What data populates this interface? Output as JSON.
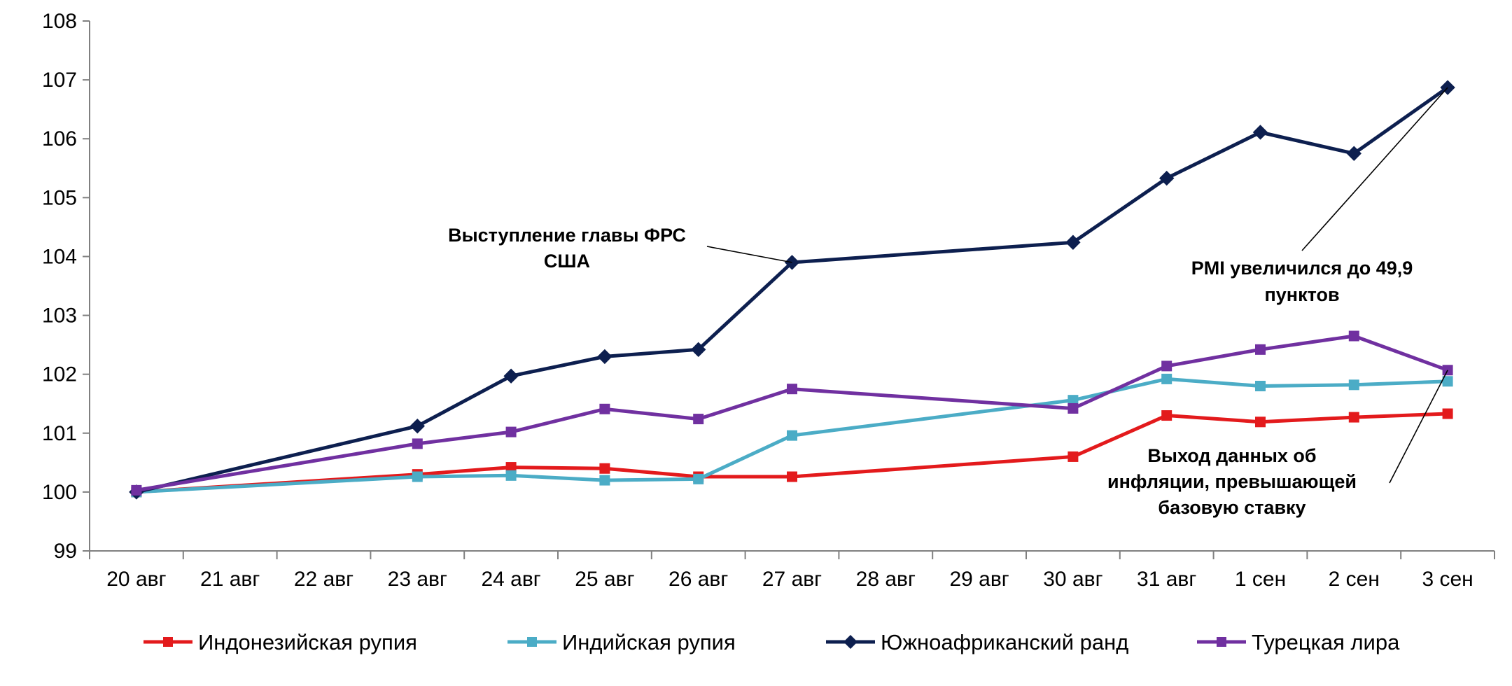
{
  "chart_data": {
    "type": "line",
    "title": "",
    "xlabel": "",
    "ylabel": "",
    "ylim": [
      99,
      108
    ],
    "yticks": [
      99,
      100,
      101,
      102,
      103,
      104,
      105,
      106,
      107,
      108
    ],
    "grid": false,
    "legend_position": "bottom",
    "categories": [
      "20 авг",
      "21 авг",
      "22 авг",
      "23 авг",
      "24 авг",
      "25 авг",
      "26 авг",
      "27 авг",
      "28 авг",
      "29 авг",
      "30 авг",
      "31 авг",
      "1 сен",
      "2 сен",
      "3 сен"
    ],
    "series": [
      {
        "name": "Индонезийская рупия",
        "color": "#e31a1c",
        "marker": "square",
        "points": [
          [
            0,
            100.0
          ],
          [
            3,
            100.3
          ],
          [
            4,
            100.42
          ],
          [
            5,
            100.4
          ],
          [
            6,
            100.26
          ],
          [
            7,
            100.26
          ],
          [
            10,
            100.6
          ],
          [
            11,
            101.3
          ],
          [
            12,
            101.19
          ],
          [
            13,
            101.27
          ],
          [
            14,
            101.33
          ]
        ]
      },
      {
        "name": "Индийская рупия",
        "color": "#4bacc6",
        "marker": "square",
        "points": [
          [
            0,
            100.0
          ],
          [
            3,
            100.26
          ],
          [
            4,
            100.28
          ],
          [
            5,
            100.2
          ],
          [
            6,
            100.22
          ],
          [
            7,
            100.96
          ],
          [
            10,
            101.56
          ],
          [
            11,
            101.92
          ],
          [
            12,
            101.8
          ],
          [
            13,
            101.82
          ],
          [
            14,
            101.88
          ]
        ]
      },
      {
        "name": "Южноафриканский ранд",
        "color": "#0d1f4f",
        "marker": "diamond",
        "points": [
          [
            0,
            100.0
          ],
          [
            3,
            101.12
          ],
          [
            4,
            101.97
          ],
          [
            5,
            102.3
          ],
          [
            6,
            102.42
          ],
          [
            7,
            103.9
          ],
          [
            10,
            104.24
          ],
          [
            11,
            105.33
          ],
          [
            12,
            106.11
          ],
          [
            13,
            105.75
          ],
          [
            14,
            106.87
          ]
        ]
      },
      {
        "name": "Турецкая лира",
        "color": "#7030a0",
        "marker": "square",
        "points": [
          [
            0,
            100.03
          ],
          [
            3,
            100.82
          ],
          [
            4,
            101.02
          ],
          [
            5,
            101.41
          ],
          [
            6,
            101.24
          ],
          [
            7,
            101.75
          ],
          [
            10,
            101.42
          ],
          [
            11,
            102.14
          ],
          [
            12,
            102.42
          ],
          [
            13,
            102.65
          ],
          [
            14,
            102.07
          ]
        ]
      }
    ],
    "annotations": [
      {
        "lines": [
          "Выступление главы ФРС",
          "США"
        ],
        "target": [
          7,
          103.9
        ]
      },
      {
        "lines": [
          "PMI увеличился до 49,9",
          "пунктов"
        ],
        "target": [
          14,
          106.87
        ]
      },
      {
        "lines": [
          "Выход данных об",
          "инфляции, превышающей",
          "базовую ставку"
        ],
        "target": [
          14,
          102.07
        ]
      }
    ]
  }
}
